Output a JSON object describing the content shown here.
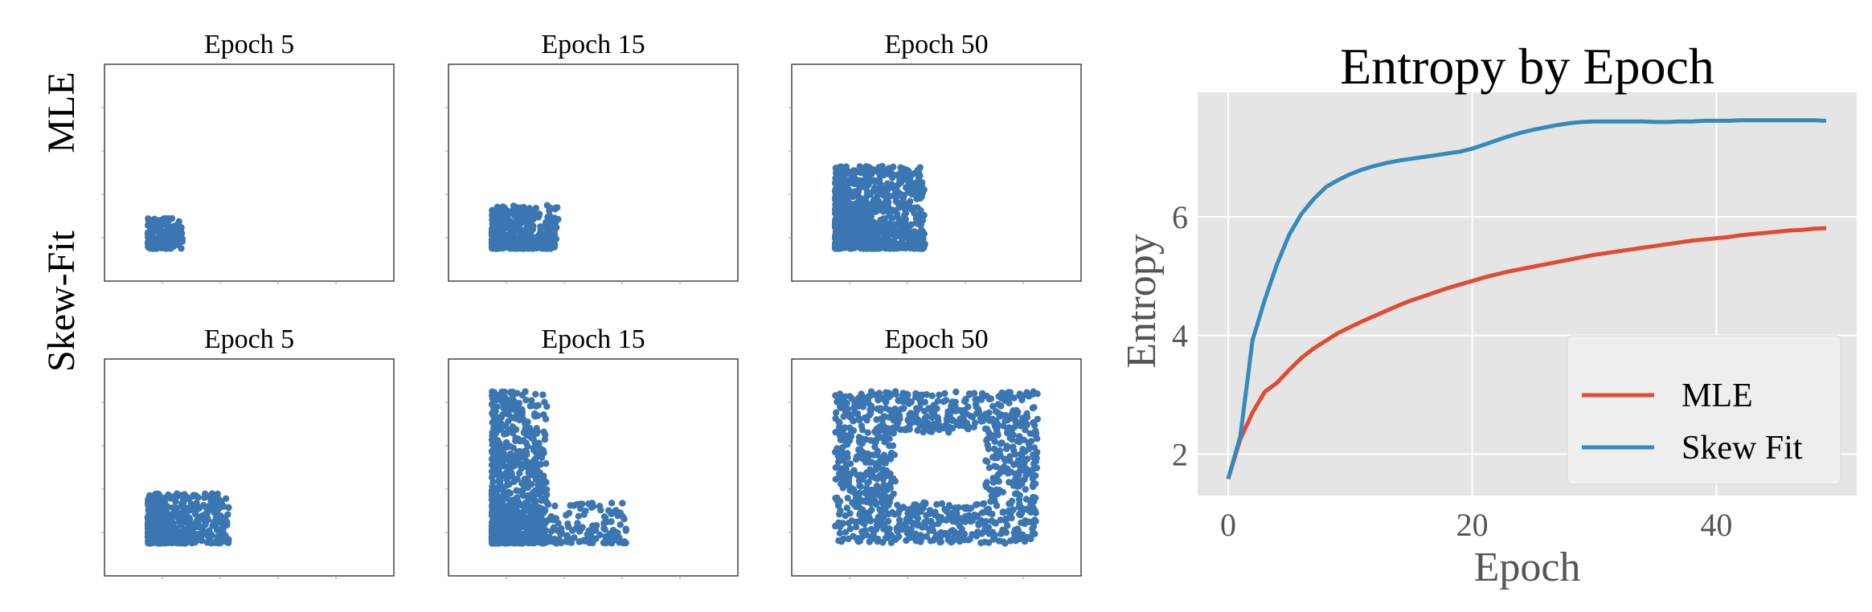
{
  "panels": {
    "row_labels": [
      "MLE",
      "Skew-Fit"
    ],
    "col_titles": [
      "Epoch 5",
      "Epoch 15",
      "Epoch 50"
    ]
  },
  "chart_data": [
    {
      "type": "scatter",
      "row": "MLE",
      "title": "Epoch 5",
      "xlim": [
        0,
        1
      ],
      "ylim": [
        0,
        1
      ],
      "grid": false,
      "color": "#3b76b2",
      "series": [
        {
          "region": "blob",
          "x": [
            0.15,
            0.27
          ],
          "y": [
            0.15,
            0.29
          ],
          "count": 180
        }
      ]
    },
    {
      "type": "scatter",
      "row": "MLE",
      "title": "Epoch 15",
      "xlim": [
        0,
        1
      ],
      "ylim": [
        0,
        1
      ],
      "grid": false,
      "color": "#3b76b2",
      "series": [
        {
          "region": "blob",
          "x": [
            0.15,
            0.38
          ],
          "y": [
            0.15,
            0.35
          ],
          "count": 420
        }
      ]
    },
    {
      "type": "scatter",
      "row": "MLE",
      "title": "Epoch 50",
      "xlim": [
        0,
        1
      ],
      "ylim": [
        0,
        1
      ],
      "grid": false,
      "color": "#3b76b2",
      "series": [
        {
          "region": "blob",
          "x": [
            0.15,
            0.46
          ],
          "y": [
            0.15,
            0.53
          ],
          "count": 900
        }
      ]
    },
    {
      "type": "scatter",
      "row": "Skew-Fit",
      "title": "Epoch 5",
      "xlim": [
        0,
        1
      ],
      "ylim": [
        0,
        1
      ],
      "grid": false,
      "color": "#3b76b2",
      "series": [
        {
          "region": "blob",
          "x": [
            0.15,
            0.43
          ],
          "y": [
            0.15,
            0.38
          ],
          "count": 520
        }
      ]
    },
    {
      "type": "scatter",
      "row": "Skew-Fit",
      "title": "Epoch 15",
      "xlim": [
        0,
        1
      ],
      "ylim": [
        0,
        1
      ],
      "grid": false,
      "color": "#3b76b2",
      "series": [
        {
          "region": "vertical-bar",
          "x": [
            0.15,
            0.34
          ],
          "y": [
            0.15,
            0.85
          ],
          "count": 700
        },
        {
          "region": "horizontal-bar",
          "x": [
            0.15,
            0.62
          ],
          "y": [
            0.15,
            0.34
          ],
          "count": 300
        }
      ]
    },
    {
      "type": "scatter",
      "row": "Skew-Fit",
      "title": "Epoch 50",
      "xlim": [
        0,
        1
      ],
      "ylim": [
        0,
        1
      ],
      "grid": false,
      "color": "#3b76b2",
      "series": [
        {
          "region": "square-ring",
          "x": [
            0.15,
            0.85
          ],
          "y": [
            0.15,
            0.85
          ],
          "hole_x": [
            0.36,
            0.67
          ],
          "hole_y": [
            0.34,
            0.66
          ],
          "count": 1100
        }
      ]
    },
    {
      "type": "line",
      "title": "Entropy by Epoch",
      "xlabel": "Epoch",
      "ylabel": "Entropy",
      "xlim": [
        -2.5,
        51.5
      ],
      "ylim": [
        1.3,
        8.1
      ],
      "xticks": [
        0,
        20,
        40
      ],
      "yticks": [
        2,
        4,
        6
      ],
      "grid": true,
      "legend": "lower-right",
      "x": [
        0,
        1,
        2,
        3,
        4,
        5,
        6,
        7,
        8,
        9,
        10,
        11,
        12,
        13,
        14,
        15,
        16,
        17,
        18,
        19,
        20,
        21,
        22,
        23,
        24,
        25,
        26,
        27,
        28,
        29,
        30,
        31,
        32,
        33,
        34,
        35,
        36,
        37,
        38,
        39,
        40,
        41,
        42,
        43,
        44,
        45,
        46,
        47,
        48,
        49
      ],
      "series": [
        {
          "name": "MLE",
          "color": "#e24a33",
          "values": [
            1.58,
            2.25,
            2.7,
            3.05,
            3.2,
            3.42,
            3.62,
            3.78,
            3.91,
            4.04,
            4.14,
            4.24,
            4.33,
            4.42,
            4.51,
            4.59,
            4.66,
            4.73,
            4.8,
            4.86,
            4.92,
            4.98,
            5.03,
            5.08,
            5.12,
            5.16,
            5.2,
            5.24,
            5.28,
            5.32,
            5.36,
            5.39,
            5.42,
            5.45,
            5.48,
            5.51,
            5.54,
            5.57,
            5.6,
            5.62,
            5.64,
            5.66,
            5.69,
            5.71,
            5.73,
            5.75,
            5.77,
            5.78,
            5.8,
            5.81
          ]
        },
        {
          "name": "Skew Fit",
          "color": "#348abd",
          "values": [
            1.58,
            2.3,
            3.92,
            4.6,
            5.2,
            5.7,
            6.05,
            6.3,
            6.5,
            6.62,
            6.72,
            6.8,
            6.86,
            6.91,
            6.95,
            6.98,
            7.01,
            7.04,
            7.07,
            7.1,
            7.15,
            7.22,
            7.29,
            7.36,
            7.42,
            7.47,
            7.51,
            7.55,
            7.58,
            7.6,
            7.61,
            7.61,
            7.61,
            7.61,
            7.61,
            7.6,
            7.6,
            7.61,
            7.61,
            7.62,
            7.62,
            7.62,
            7.63,
            7.63,
            7.63,
            7.63,
            7.63,
            7.63,
            7.63,
            7.62
          ]
        }
      ]
    }
  ]
}
